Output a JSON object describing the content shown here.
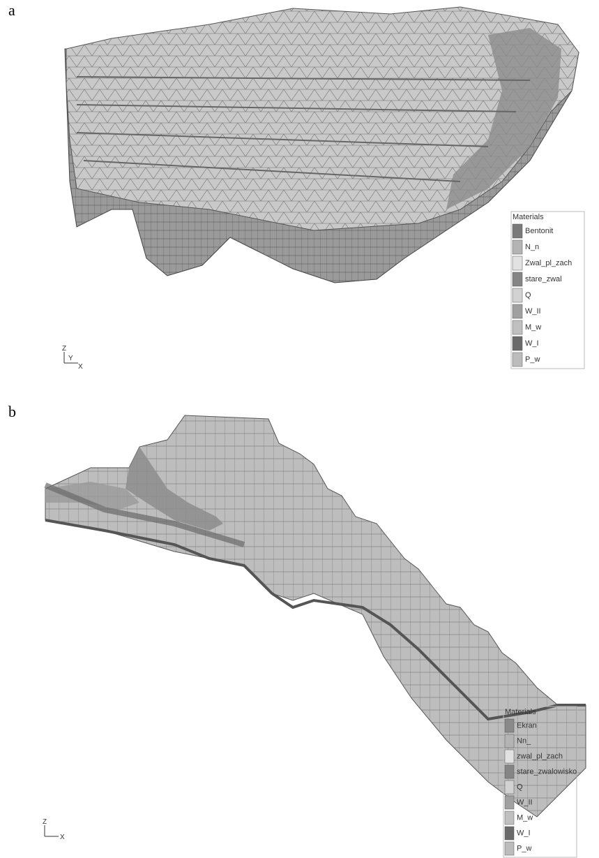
{
  "panels": [
    {
      "label": "a",
      "legend": {
        "title": "Materials",
        "items": [
          {
            "name": "Bentonit",
            "color": "#7a7a7a"
          },
          {
            "name": "N_n",
            "color": "#b4b4b4"
          },
          {
            "name": "Zwal_pl_zach",
            "color": "#e2e2e2"
          },
          {
            "name": "stare_zwal",
            "color": "#858585"
          },
          {
            "name": "Q",
            "color": "#d2d2d2"
          },
          {
            "name": "W_II",
            "color": "#a0a0a0"
          },
          {
            "name": "M_w",
            "color": "#c0c0c0"
          },
          {
            "name": "W_I",
            "color": "#6a6a6a"
          },
          {
            "name": "P_w",
            "color": "#bcbcbc"
          }
        ]
      },
      "axes": [
        "Z",
        "Y",
        "X"
      ]
    },
    {
      "label": "b",
      "legend": {
        "title": "Materials",
        "items": [
          {
            "name": "Ekran",
            "color": "#8a8a8a"
          },
          {
            "name": "Nn_",
            "color": "#b4b4b4"
          },
          {
            "name": "zwal_pl_zach",
            "color": "#e2e2e2"
          },
          {
            "name": "stare_zwalowisko",
            "color": "#858585"
          },
          {
            "name": "Q",
            "color": "#d2d2d2"
          },
          {
            "name": "W_II",
            "color": "#a0a0a0"
          },
          {
            "name": "M_w",
            "color": "#c0c0c0"
          },
          {
            "name": "W_I",
            "color": "#6a6a6a"
          },
          {
            "name": "P_w",
            "color": "#bcbcbc"
          }
        ]
      },
      "axes": [
        "Z",
        "X"
      ]
    }
  ]
}
